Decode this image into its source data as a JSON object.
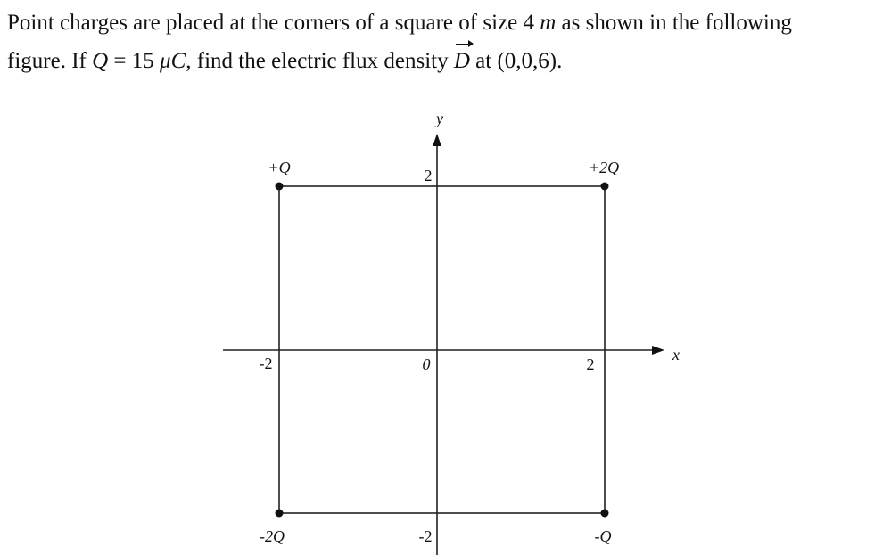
{
  "question": {
    "segments": [
      "Point charges are placed at the corners of a square of size 4 ",
      "m",
      " as shown in the following",
      "figure. If ",
      "Q",
      " = 15 ",
      "μC",
      ", find the electric flux density ",
      "D",
      " at (0,0,6)."
    ]
  },
  "figure": {
    "labels": {
      "y_axis": "y",
      "x_axis": "x",
      "top_left": "+Q",
      "top_right": "+2Q",
      "bottom_left": "-2Q",
      "bottom_right": "-Q",
      "y_top": "2",
      "y_bottom": "-2",
      "x_left": "-2",
      "x_right": "2",
      "origin": "0"
    }
  }
}
